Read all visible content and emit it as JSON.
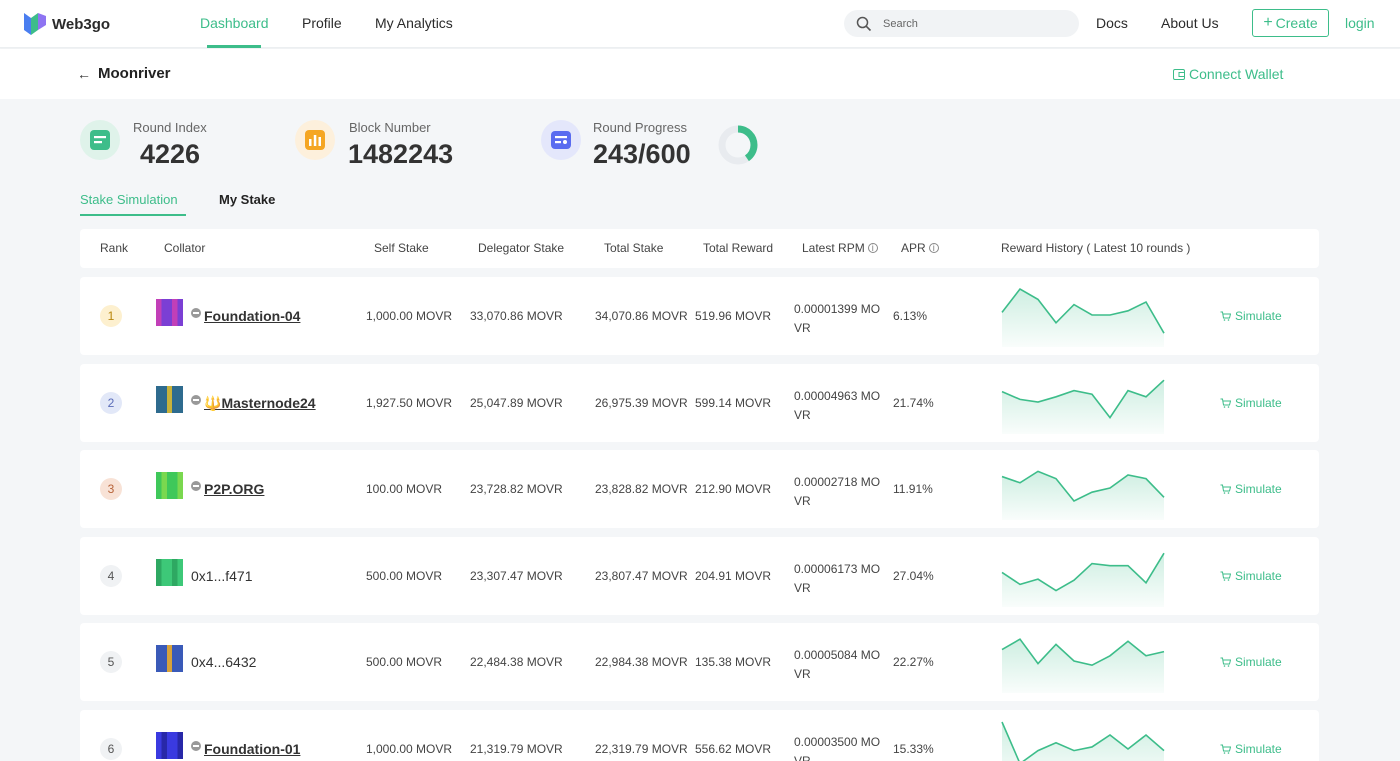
{
  "app": {
    "name": "Web3go"
  },
  "nav": {
    "dashboard": "Dashboard",
    "profile": "Profile",
    "analytics": "My Analytics",
    "docs": "Docs",
    "about": "About Us",
    "create": "Create",
    "login": "login"
  },
  "search": {
    "placeholder": "Search"
  },
  "page": {
    "title": "Moonriver",
    "connect_wallet": "Connect Wallet"
  },
  "stats": {
    "round_index": {
      "label": "Round Index",
      "value": "4226"
    },
    "block_number": {
      "label": "Block Number",
      "value": "1482243"
    },
    "round_progress": {
      "label": "Round Progress",
      "value": "243/600",
      "fraction": 0.405
    }
  },
  "tabs": {
    "stake_simulation": "Stake Simulation",
    "my_stake": "My Stake"
  },
  "columns": {
    "rank": "Rank",
    "collator": "Collator",
    "self_stake": "Self Stake",
    "delegator_stake": "Delegator Stake",
    "total_stake": "Total Stake",
    "total_reward": "Total Reward",
    "latest_rpm": "Latest RPM",
    "apr": "APR",
    "reward_history": "Reward History ( Latest 10 rounds )"
  },
  "simulate_label": "Simulate",
  "colors": {
    "accent": "#3dbd8a",
    "spark_line": "#3dbd8a"
  },
  "rows": [
    {
      "rank": "1",
      "name": "Foundation-04",
      "linked": true,
      "id_icon": true,
      "badge": "",
      "self_stake": "1,000.00 MOVR",
      "delegator_stake": "33,070.86 MOVR",
      "total_stake": "34,070.86 MOVR",
      "total_reward": "519.96 MOVR",
      "rpm": "0.00001399 MOVR",
      "apr": "6.13%",
      "history": [
        0.55,
        1.0,
        0.8,
        0.35,
        0.7,
        0.5,
        0.5,
        0.58,
        0.75,
        0.15
      ]
    },
    {
      "rank": "2",
      "name": "Masternode24",
      "linked": true,
      "id_icon": true,
      "badge": "🔱",
      "self_stake": "1,927.50 MOVR",
      "delegator_stake": "25,047.89 MOVR",
      "total_stake": "26,975.39 MOVR",
      "total_reward": "599.14 MOVR",
      "rpm": "0.00004963 MOVR",
      "apr": "21.74%",
      "history": [
        0.7,
        0.55,
        0.5,
        0.6,
        0.72,
        0.65,
        0.2,
        0.72,
        0.6,
        0.92
      ]
    },
    {
      "rank": "3",
      "name": "P2P.ORG",
      "linked": true,
      "id_icon": true,
      "badge": "",
      "self_stake": "100.00 MOVR",
      "delegator_stake": "23,728.82 MOVR",
      "total_stake": "23,828.82 MOVR",
      "total_reward": "212.90 MOVR",
      "rpm": "0.00002718 MOVR",
      "apr": "11.91%",
      "history": [
        0.72,
        0.6,
        0.82,
        0.68,
        0.25,
        0.42,
        0.5,
        0.75,
        0.68,
        0.32
      ]
    },
    {
      "rank": "4",
      "name": "0x1...f471",
      "linked": false,
      "id_icon": false,
      "badge": "",
      "self_stake": "500.00 MOVR",
      "delegator_stake": "23,307.47 MOVR",
      "total_stake": "23,807.47 MOVR",
      "total_reward": "204.91 MOVR",
      "rpm": "0.00006173 MOVR",
      "apr": "27.04%",
      "history": [
        0.55,
        0.32,
        0.42,
        0.2,
        0.4,
        0.72,
        0.68,
        0.68,
        0.35,
        0.92
      ]
    },
    {
      "rank": "5",
      "name": "0x4...6432",
      "linked": false,
      "id_icon": false,
      "badge": "",
      "self_stake": "500.00 MOVR",
      "delegator_stake": "22,484.38 MOVR",
      "total_stake": "22,984.38 MOVR",
      "total_reward": "135.38 MOVR",
      "rpm": "0.00005084 MOVR",
      "apr": "22.27%",
      "history": [
        0.72,
        0.92,
        0.45,
        0.82,
        0.5,
        0.42,
        0.6,
        0.88,
        0.6,
        0.68
      ]
    },
    {
      "rank": "6",
      "name": "Foundation-01",
      "linked": true,
      "id_icon": true,
      "badge": "",
      "self_stake": "1,000.00 MOVR",
      "delegator_stake": "21,319.79 MOVR",
      "total_stake": "22,319.79 MOVR",
      "total_reward": "556.62 MOVR",
      "rpm": "0.00003500 MOVR",
      "apr": "15.33%",
      "history": [
        1.0,
        0.2,
        0.45,
        0.6,
        0.45,
        0.52,
        0.75,
        0.48,
        0.75,
        0.45
      ]
    }
  ]
}
